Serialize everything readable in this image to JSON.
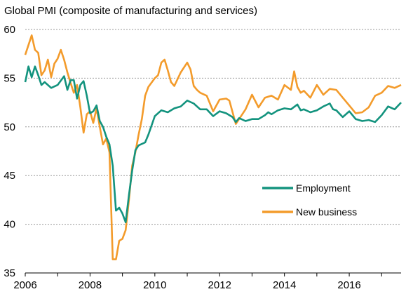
{
  "chart_data": {
    "type": "line",
    "title": "Global PMI (composite of manufacturing and services)",
    "xlabel": "",
    "ylabel": "",
    "xlim": [
      2006,
      2017.6
    ],
    "ylim": [
      35,
      60
    ],
    "y_ticks": [
      35,
      40,
      45,
      50,
      55,
      60
    ],
    "x_ticks": [
      2006,
      2008,
      2010,
      2012,
      2014,
      2016
    ],
    "grid": "horizontal dashed",
    "legend_position": "lower-right",
    "series": [
      {
        "name": "Employment",
        "color": "#13937e",
        "x": [
          2006.0,
          2006.1,
          2006.2,
          2006.3,
          2006.4,
          2006.5,
          2006.6,
          2006.8,
          2007.0,
          2007.2,
          2007.3,
          2007.4,
          2007.5,
          2007.6,
          2007.7,
          2007.8,
          2007.9,
          2008.0,
          2008.1,
          2008.2,
          2008.3,
          2008.4,
          2008.5,
          2008.6,
          2008.7,
          2008.8,
          2008.9,
          2009.0,
          2009.1,
          2009.2,
          2009.3,
          2009.4,
          2009.5,
          2009.7,
          2009.8,
          2010.0,
          2010.2,
          2010.4,
          2010.6,
          2010.8,
          2011.0,
          2011.2,
          2011.4,
          2011.6,
          2011.8,
          2012.0,
          2012.2,
          2012.4,
          2012.5,
          2012.6,
          2012.8,
          2013.0,
          2013.2,
          2013.4,
          2013.5,
          2013.6,
          2013.8,
          2014.0,
          2014.2,
          2014.4,
          2014.5,
          2014.6,
          2014.8,
          2015.0,
          2015.2,
          2015.4,
          2015.5,
          2015.6,
          2015.8,
          2016.0,
          2016.2,
          2016.4,
          2016.6,
          2016.8,
          2017.0,
          2017.2,
          2017.4,
          2017.6
        ],
        "values": [
          54.6,
          56.2,
          55.1,
          56.2,
          55.3,
          54.3,
          54.6,
          54.0,
          54.3,
          55.2,
          53.8,
          54.8,
          54.8,
          52.9,
          54.3,
          54.7,
          53.2,
          51.4,
          51.6,
          52.2,
          50.6,
          50.0,
          49.0,
          48.2,
          46.0,
          41.4,
          41.7,
          41.1,
          40.2,
          43.0,
          45.5,
          47.6,
          48.1,
          48.4,
          49.2,
          51.1,
          51.7,
          51.5,
          51.9,
          52.1,
          52.7,
          52.4,
          51.8,
          51.8,
          51.1,
          51.6,
          51.4,
          51.0,
          50.5,
          50.9,
          50.6,
          50.8,
          50.8,
          51.2,
          51.5,
          51.3,
          51.7,
          51.9,
          51.8,
          52.3,
          51.7,
          51.8,
          51.5,
          51.7,
          52.1,
          52.4,
          51.8,
          51.7,
          51.0,
          51.6,
          50.8,
          50.6,
          50.7,
          50.5,
          51.2,
          52.1,
          51.8,
          52.5
        ]
      },
      {
        "name": "New business",
        "color": "#f39b2b",
        "x": [
          2006.0,
          2006.1,
          2006.2,
          2006.3,
          2006.4,
          2006.5,
          2006.6,
          2006.7,
          2006.8,
          2006.9,
          2007.0,
          2007.1,
          2007.2,
          2007.3,
          2007.4,
          2007.5,
          2007.6,
          2007.7,
          2007.8,
          2007.9,
          2008.0,
          2008.1,
          2008.2,
          2008.3,
          2008.4,
          2008.5,
          2008.6,
          2008.7,
          2008.8,
          2008.9,
          2009.0,
          2009.1,
          2009.2,
          2009.3,
          2009.4,
          2009.5,
          2009.6,
          2009.7,
          2009.8,
          2010.0,
          2010.1,
          2010.2,
          2010.3,
          2010.4,
          2010.5,
          2010.6,
          2010.8,
          2011.0,
          2011.1,
          2011.2,
          2011.3,
          2011.4,
          2011.6,
          2011.8,
          2012.0,
          2012.2,
          2012.3,
          2012.4,
          2012.5,
          2012.6,
          2012.8,
          2013.0,
          2013.2,
          2013.4,
          2013.6,
          2013.8,
          2014.0,
          2014.2,
          2014.3,
          2014.4,
          2014.5,
          2014.6,
          2014.8,
          2015.0,
          2015.2,
          2015.4,
          2015.6,
          2015.8,
          2016.0,
          2016.2,
          2016.4,
          2016.6,
          2016.8,
          2017.0,
          2017.2,
          2017.4,
          2017.6
        ],
        "values": [
          57.4,
          58.4,
          59.4,
          57.9,
          57.6,
          55.3,
          55.8,
          56.9,
          55.1,
          56.5,
          57.0,
          57.9,
          56.9,
          55.6,
          54.5,
          53.5,
          54.3,
          52.0,
          49.4,
          51.3,
          51.6,
          50.4,
          51.9,
          50.0,
          48.2,
          48.8,
          47.4,
          36.4,
          36.4,
          38.3,
          38.5,
          39.4,
          42.5,
          46.0,
          47.4,
          49.2,
          50.8,
          53.2,
          54.1,
          55.0,
          55.3,
          56.6,
          56.9,
          55.8,
          54.6,
          54.2,
          55.6,
          56.6,
          55.9,
          54.2,
          53.8,
          53.5,
          53.2,
          51.6,
          52.8,
          52.9,
          52.7,
          51.5,
          50.3,
          50.8,
          51.8,
          53.3,
          52.0,
          53.0,
          53.2,
          52.8,
          54.3,
          53.8,
          55.7,
          54.1,
          53.5,
          53.7,
          53.0,
          54.3,
          53.3,
          53.9,
          53.8,
          53.0,
          52.2,
          51.4,
          51.5,
          52.0,
          53.2,
          53.5,
          54.2,
          54.0,
          54.3
        ]
      }
    ]
  }
}
